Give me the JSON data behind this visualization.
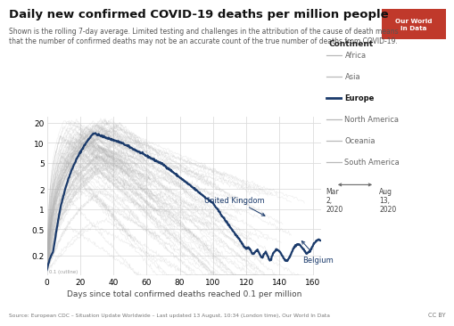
{
  "title": "Daily new confirmed COVID-19 deaths per million people",
  "subtitle1": "Shown is the rolling 7-day average. Limited testing and challenges in the attribution of the cause of death means",
  "subtitle2": "that the number of confirmed deaths may not be an accurate count of the true number of deaths from COVID-19.",
  "xlabel": "Days since total confirmed deaths reached 0.1 per million",
  "source": "Source: European CDC – Situation Update Worldwide – Last updated 13 August, 10:34 (London time), Our World In Data",
  "cc_by": "CC BY",
  "ylim_log": [
    0.1,
    25
  ],
  "xlim": [
    0,
    165
  ],
  "yticks": [
    0.2,
    0.5,
    1,
    2,
    5,
    10,
    20
  ],
  "ytick_labels": [
    "0.2",
    "0.5",
    "1",
    "2",
    "5",
    "10",
    "20"
  ],
  "xticks": [
    0,
    20,
    40,
    60,
    80,
    100,
    120,
    140,
    160
  ],
  "europe_color": "#1a3a6b",
  "gray_color": "#b0b0b0",
  "bg_color": "#ffffff",
  "grid_color": "#dddddd",
  "annotation_UK": "United Kingdom",
  "annotation_Belgium": "Belgium",
  "owid_bg": "#c0392b",
  "legend_items": [
    "Africa",
    "Asia",
    "Europe",
    "North America",
    "Oceania",
    "South America"
  ],
  "legend_colors": [
    "#b8b8b8",
    "#b8b8b8",
    "#1a3a6b",
    "#b8b8b8",
    "#b8b8b8",
    "#b8b8b8"
  ]
}
